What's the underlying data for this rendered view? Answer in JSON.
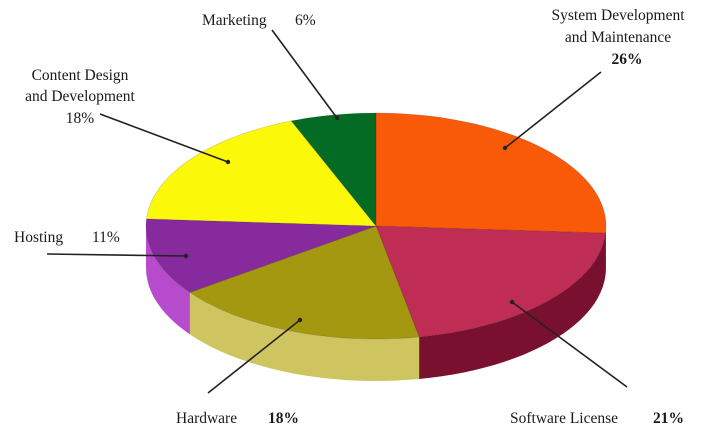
{
  "chart_data": {
    "type": "pie",
    "title": "",
    "three_d": true,
    "slices": [
      {
        "label": "System Development and Maintenance",
        "line1": "System Development",
        "line2": "and Maintenance",
        "pct_text": "26%",
        "value": 26,
        "color": "#f95a07",
        "side": "#b52d04"
      },
      {
        "label": "Software License",
        "line1": "Software License",
        "line2": "",
        "pct_text": "21%",
        "value": 21,
        "color": "#bf2c54",
        "side": "#7a1030"
      },
      {
        "label": "Hardware",
        "line1": "Hardware",
        "line2": "",
        "pct_text": "18%",
        "value": 18,
        "color": "#a49811",
        "side": "#cfc560"
      },
      {
        "label": "Hosting",
        "line1": "Hosting",
        "line2": "",
        "pct_text": "11%",
        "value": 11,
        "color": "#862a9e",
        "side": "#b64ccb"
      },
      {
        "label": "Content Design and Development",
        "line1": "Content Design",
        "line2": "and Development",
        "pct_text": "18%",
        "value": 18,
        "color": "#fcf80a",
        "side": "#d8d400"
      },
      {
        "label": "Marketing",
        "line1": "Marketing",
        "line2": "",
        "pct_text": "6%",
        "value": 6,
        "color": "#036b23",
        "side": "#02461a"
      }
    ]
  }
}
